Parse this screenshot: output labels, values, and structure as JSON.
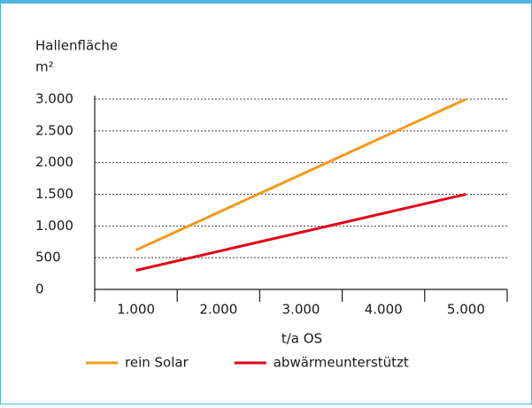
{
  "chart_data": {
    "type": "line",
    "y_label": "Hallenfläche",
    "y_unit": "m²",
    "x_label": "t/a  OS",
    "x": [
      1000,
      5000
    ],
    "series": [
      {
        "name": "rein Solar",
        "color": "#f39a1a",
        "values": [
          620,
          3000
        ]
      },
      {
        "name": "abwärmeunterstützt",
        "color": "#e2001a",
        "values": [
          300,
          1500
        ]
      }
    ],
    "xlim": [
      500,
      5500
    ],
    "xticks": [
      {
        "value": 1000,
        "label": "1.000"
      },
      {
        "value": 2000,
        "label": "2.000"
      },
      {
        "value": 3000,
        "label": "3.000"
      },
      {
        "value": 4000,
        "label": "4.000"
      },
      {
        "value": 5000,
        "label": "5.000"
      }
    ],
    "ylim": [
      0,
      3000
    ],
    "yticks": [
      0,
      500,
      {
        "value": 1000,
        "label": "1.000"
      },
      {
        "value": 1500,
        "label": "1.500"
      },
      {
        "value": 2000,
        "label": "2.000"
      },
      {
        "value": 2500,
        "label": "2.500"
      },
      {
        "value": 3000,
        "label": "3.000"
      }
    ],
    "grid": true
  }
}
